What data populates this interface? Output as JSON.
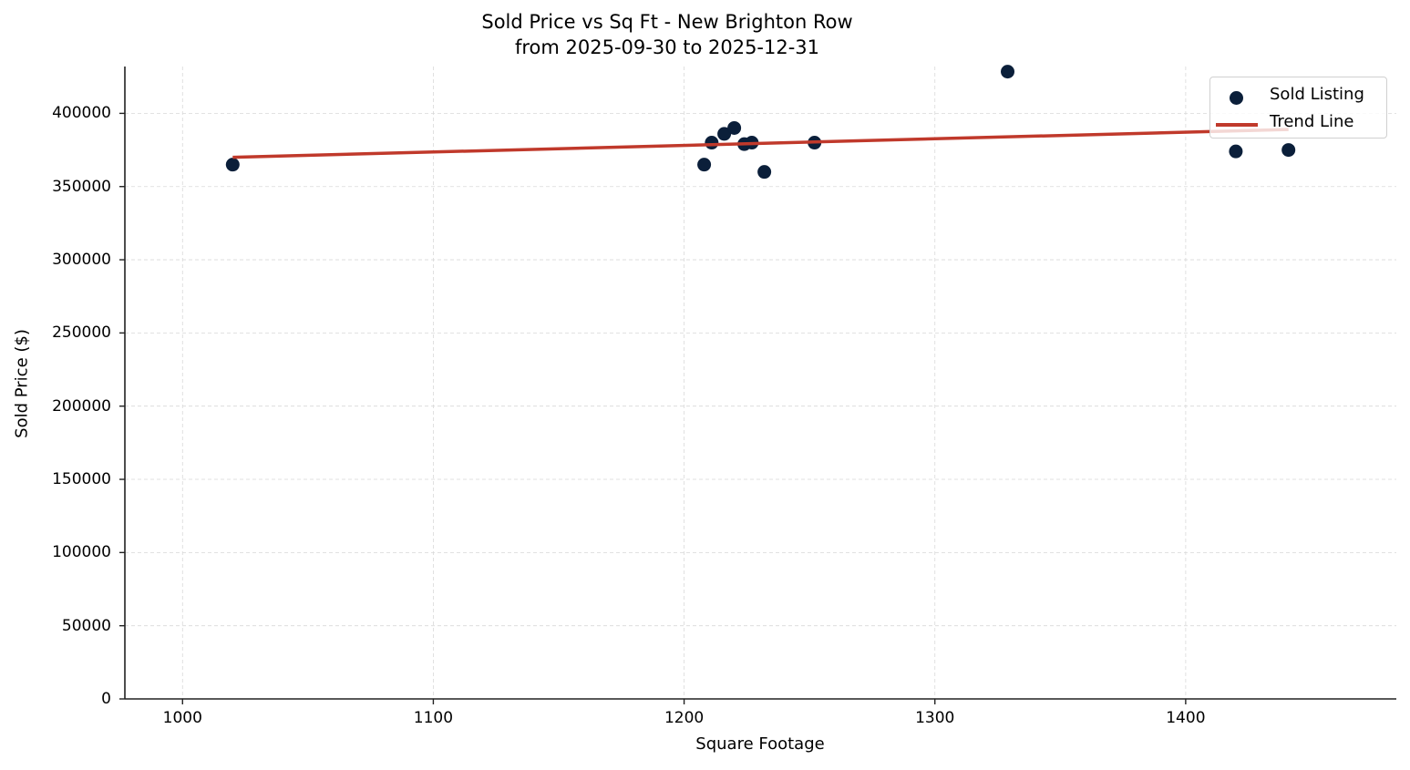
{
  "chart_data": {
    "type": "scatter",
    "title": "Sold Price vs Sq Ft - New Brighton Row",
    "subtitle": "from 2025-09-30 to 2025-12-31",
    "xlabel": "Square Footage",
    "ylabel": "Sold Price ($)",
    "xlim": [
      977,
      1484
    ],
    "ylim": [
      0,
      432000
    ],
    "x_ticks": [
      1000,
      1100,
      1200,
      1300,
      1400
    ],
    "y_ticks": [
      0,
      50000,
      100000,
      150000,
      200000,
      250000,
      300000,
      350000,
      400000
    ],
    "grid": true,
    "legend_position": "upper right",
    "series": [
      {
        "name": "Sold Listing",
        "type": "scatter",
        "color": "#0b1f3a",
        "x": [
          1020,
          1208,
          1211,
          1216,
          1220,
          1224,
          1227,
          1232,
          1252,
          1329,
          1420,
          1441
        ],
        "y": [
          365000,
          365000,
          380000,
          386000,
          390000,
          379000,
          380000,
          360000,
          380000,
          428500,
          374000,
          375000
        ]
      },
      {
        "name": "Trend Line",
        "type": "line",
        "color": "#c0392b",
        "x": [
          1020,
          1441
        ],
        "y": [
          370000,
          389000
        ]
      }
    ]
  },
  "legend": {
    "items": [
      "Sold Listing",
      "Trend Line"
    ]
  }
}
